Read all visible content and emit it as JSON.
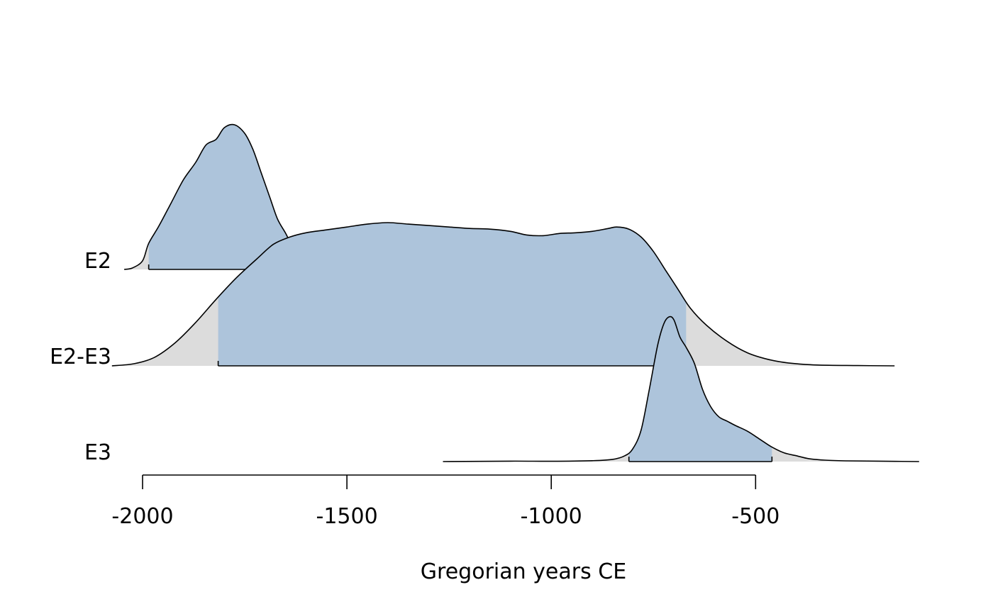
{
  "chart_data": {
    "type": "area",
    "title": "",
    "xlabel": "Gregorian years CE",
    "ylabel": "",
    "xlim": [
      -2050,
      -100
    ],
    "xticks": [
      -2000,
      -1500,
      -1000,
      -500
    ],
    "grid": false,
    "colors": {
      "hpd_fill": "#a7c1da",
      "density_tail": "#dcdcdc",
      "line": "#000000"
    },
    "series": [
      {
        "name": "E2",
        "hpd": [
          -1985,
          -1620
        ],
        "density": [
          [
            -2045,
            0
          ],
          [
            -2025,
            0.01
          ],
          [
            -2000,
            0.06
          ],
          [
            -1985,
            0.18
          ],
          [
            -1960,
            0.3
          ],
          [
            -1930,
            0.46
          ],
          [
            -1900,
            0.62
          ],
          [
            -1870,
            0.74
          ],
          [
            -1845,
            0.86
          ],
          [
            -1820,
            0.9
          ],
          [
            -1800,
            0.98
          ],
          [
            -1775,
            1.0
          ],
          [
            -1750,
            0.94
          ],
          [
            -1730,
            0.83
          ],
          [
            -1710,
            0.67
          ],
          [
            -1690,
            0.51
          ],
          [
            -1670,
            0.35
          ],
          [
            -1650,
            0.25
          ],
          [
            -1630,
            0.14
          ],
          [
            -1610,
            0.07
          ],
          [
            -1590,
            0.025
          ],
          [
            -1560,
            0.015
          ],
          [
            -1530,
            0.008
          ],
          [
            -1500,
            0.004
          ],
          [
            -1450,
            0.003
          ],
          [
            -1400,
            0.003
          ],
          [
            -1300,
            0.002
          ],
          [
            -1200,
            0
          ]
        ]
      },
      {
        "name": "E2-E3",
        "hpd": [
          -1815,
          -670
        ],
        "density": [
          [
            -2075,
            0
          ],
          [
            -2020,
            0.015
          ],
          [
            -1970,
            0.06
          ],
          [
            -1920,
            0.16
          ],
          [
            -1870,
            0.3
          ],
          [
            -1820,
            0.46
          ],
          [
            -1770,
            0.61
          ],
          [
            -1720,
            0.74
          ],
          [
            -1680,
            0.84
          ],
          [
            -1640,
            0.89
          ],
          [
            -1600,
            0.92
          ],
          [
            -1550,
            0.94
          ],
          [
            -1500,
            0.96
          ],
          [
            -1450,
            0.98
          ],
          [
            -1400,
            0.99
          ],
          [
            -1350,
            0.98
          ],
          [
            -1300,
            0.97
          ],
          [
            -1250,
            0.96
          ],
          [
            -1200,
            0.95
          ],
          [
            -1150,
            0.945
          ],
          [
            -1100,
            0.93
          ],
          [
            -1060,
            0.905
          ],
          [
            -1020,
            0.9
          ],
          [
            -980,
            0.915
          ],
          [
            -940,
            0.92
          ],
          [
            -900,
            0.93
          ],
          [
            -860,
            0.95
          ],
          [
            -840,
            0.96
          ],
          [
            -810,
            0.945
          ],
          [
            -780,
            0.89
          ],
          [
            -750,
            0.79
          ],
          [
            -720,
            0.66
          ],
          [
            -690,
            0.53
          ],
          [
            -660,
            0.4
          ],
          [
            -620,
            0.28
          ],
          [
            -570,
            0.17
          ],
          [
            -520,
            0.09
          ],
          [
            -470,
            0.045
          ],
          [
            -420,
            0.02
          ],
          [
            -350,
            0.006
          ],
          [
            -250,
            0.002
          ],
          [
            -160,
            0
          ]
        ]
      },
      {
        "name": "E3",
        "hpd": [
          -810,
          -460
        ],
        "density": [
          [
            -1265,
            0
          ],
          [
            -1100,
            0.003
          ],
          [
            -1000,
            0.002
          ],
          [
            -900,
            0.006
          ],
          [
            -850,
            0.015
          ],
          [
            -820,
            0.04
          ],
          [
            -800,
            0.09
          ],
          [
            -780,
            0.22
          ],
          [
            -760,
            0.5
          ],
          [
            -740,
            0.8
          ],
          [
            -725,
            0.95
          ],
          [
            -712,
            1.0
          ],
          [
            -700,
            0.98
          ],
          [
            -685,
            0.86
          ],
          [
            -670,
            0.79
          ],
          [
            -650,
            0.68
          ],
          [
            -630,
            0.5
          ],
          [
            -610,
            0.38
          ],
          [
            -590,
            0.31
          ],
          [
            -570,
            0.28
          ],
          [
            -550,
            0.25
          ],
          [
            -520,
            0.21
          ],
          [
            -490,
            0.155
          ],
          [
            -460,
            0.1
          ],
          [
            -430,
            0.06
          ],
          [
            -400,
            0.04
          ],
          [
            -370,
            0.02
          ],
          [
            -330,
            0.01
          ],
          [
            -280,
            0.005
          ],
          [
            -200,
            0.003
          ],
          [
            -100,
            0
          ]
        ]
      }
    ]
  }
}
